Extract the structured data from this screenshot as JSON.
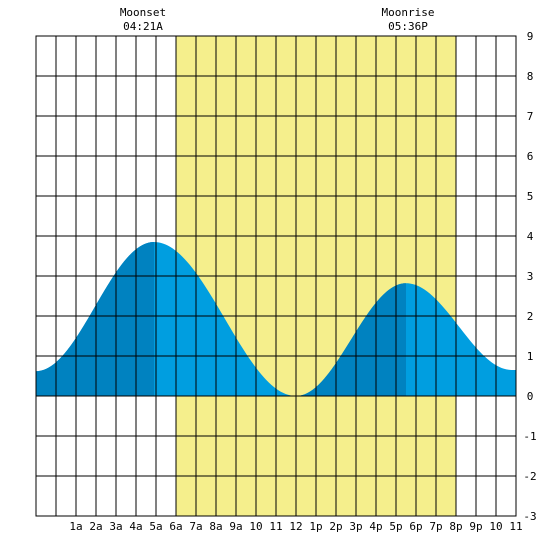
{
  "chart_data": {
    "type": "area",
    "x_unit": "hour of day",
    "xlim": [
      -1,
      23
    ],
    "ylim": [
      -3,
      9
    ],
    "grid": true,
    "y_ticks": [
      -3,
      -2,
      -1,
      0,
      1,
      2,
      3,
      4,
      5,
      6,
      7,
      8,
      9
    ],
    "x_ticks": [
      {
        "x": 1,
        "label": "1a"
      },
      {
        "x": 2,
        "label": "2a"
      },
      {
        "x": 3,
        "label": "3a"
      },
      {
        "x": 4,
        "label": "4a"
      },
      {
        "x": 5,
        "label": "5a"
      },
      {
        "x": 6,
        "label": "6a"
      },
      {
        "x": 7,
        "label": "7a"
      },
      {
        "x": 8,
        "label": "8a"
      },
      {
        "x": 9,
        "label": "9a"
      },
      {
        "x": 10,
        "label": "10"
      },
      {
        "x": 11,
        "label": "11"
      },
      {
        "x": 12,
        "label": "12"
      },
      {
        "x": 13,
        "label": "1p"
      },
      {
        "x": 14,
        "label": "2p"
      },
      {
        "x": 15,
        "label": "3p"
      },
      {
        "x": 16,
        "label": "4p"
      },
      {
        "x": 17,
        "label": "5p"
      },
      {
        "x": 18,
        "label": "6p"
      },
      {
        "x": 19,
        "label": "7p"
      },
      {
        "x": 20,
        "label": "8p"
      },
      {
        "x": 21,
        "label": "9p"
      },
      {
        "x": 22,
        "label": "10"
      },
      {
        "x": 23,
        "label": "11"
      }
    ],
    "daylight": {
      "start": 6,
      "end": 20
    },
    "tide_extremes": [
      {
        "x": -1.0,
        "y": 0.62
      },
      {
        "x": 4.9,
        "y": 3.85
      },
      {
        "x": 12.0,
        "y": 0.0
      },
      {
        "x": 17.5,
        "y": 2.82
      },
      {
        "x": 22.8,
        "y": 0.65
      }
    ],
    "rising_bands": [
      {
        "start": -1.0,
        "end": 4.9
      },
      {
        "start": 12.0,
        "end": 17.5
      }
    ],
    "events": [
      {
        "title": "Moonset",
        "time": "04:21A",
        "x": 4.35
      },
      {
        "title": "Moonrise",
        "time": "05:36P",
        "x": 17.6
      }
    ],
    "colors": {
      "daylight": "#f5ef8c",
      "tide": "#009ee0",
      "tide_rising": "#0082c0",
      "grid": "#000000",
      "background": "#ffffff"
    }
  }
}
